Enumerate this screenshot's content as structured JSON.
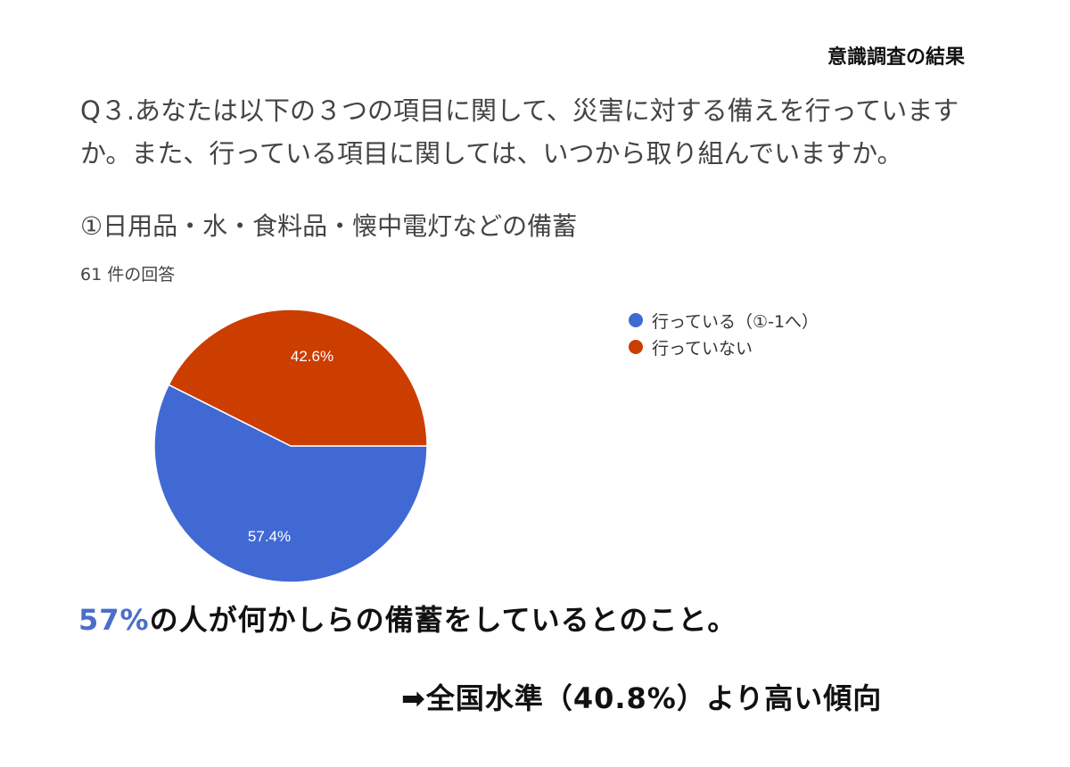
{
  "header": {
    "title": "意識調査の結果"
  },
  "question": {
    "text": "Q３.あなたは以下の３つの項目に関して、災害に対する備えを行っていますか。また、行っている項目に関しては、いつから取り組んでいますか。"
  },
  "chart_data": {
    "type": "pie",
    "title": "①日用品・水・食料品・懐中電灯などの備蓄",
    "subtitle": "61 件の回答",
    "slices": [
      {
        "label": "行っている（①-1へ）",
        "value": 57.4,
        "value_label": "57.4%",
        "color": "#4169d4"
      },
      {
        "label": "行っていない",
        "value": 42.6,
        "value_label": "42.6%",
        "color": "#cc3d00"
      }
    ],
    "legend_placement": "right"
  },
  "summary": {
    "highlight": "57%",
    "text": "の人が何かしらの備蓄をしているとのこと。",
    "highlight_color": "#4a6fc9"
  },
  "comparison": {
    "text": "➡全国水準（40.8%）より高い傾向"
  }
}
